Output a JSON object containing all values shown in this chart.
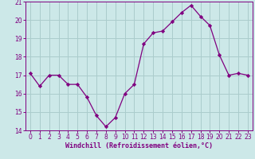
{
  "x": [
    0,
    1,
    2,
    3,
    4,
    5,
    6,
    7,
    8,
    9,
    10,
    11,
    12,
    13,
    14,
    15,
    16,
    17,
    18,
    19,
    20,
    21,
    22,
    23
  ],
  "y": [
    17.1,
    16.4,
    17.0,
    17.0,
    16.5,
    16.5,
    15.8,
    14.8,
    14.2,
    14.7,
    16.0,
    16.5,
    18.7,
    19.3,
    19.4,
    19.9,
    20.4,
    20.8,
    20.2,
    19.7,
    18.1,
    17.0,
    17.1,
    17.0
  ],
  "ylim": [
    14,
    21
  ],
  "xlim": [
    -0.5,
    23.5
  ],
  "yticks": [
    14,
    15,
    16,
    17,
    18,
    19,
    20,
    21
  ],
  "xtick_labels": [
    "0",
    "1",
    "2",
    "3",
    "4",
    "5",
    "6",
    "7",
    "8",
    "9",
    "10",
    "11",
    "12",
    "13",
    "14",
    "15",
    "16",
    "17",
    "18",
    "19",
    "20",
    "21",
    "22",
    "23"
  ],
  "xlabel": "Windchill (Refroidissement éolien,°C)",
  "line_color": "#800080",
  "marker": "D",
  "marker_size": 2.2,
  "bg_color": "#cce8e8",
  "grid_color": "#aacccc",
  "label_color": "#800080",
  "tick_color": "#800080",
  "tick_fontsize": 5.5,
  "xlabel_fontsize": 6.0
}
